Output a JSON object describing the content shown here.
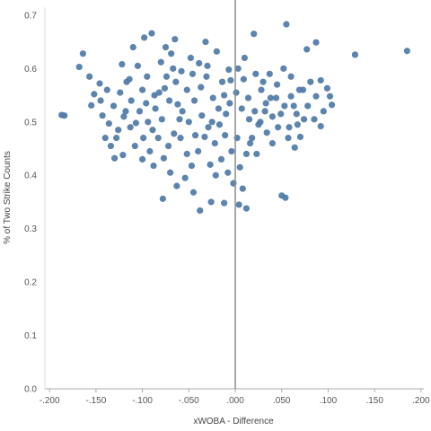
{
  "chart_data": {
    "type": "scatter",
    "title": "",
    "xlabel": "xWOBA - Difference",
    "ylabel": "% of Two Strike Counts",
    "xlim": [
      -0.205,
      0.203
    ],
    "ylim": [
      0.0,
      0.715
    ],
    "x_ticks": [
      -0.2,
      -0.15,
      -0.1,
      -0.05,
      0.0,
      0.05,
      0.1,
      0.15,
      0.2
    ],
    "x_tick_labels": [
      "-.200",
      "-.150",
      "-.100",
      "-.050",
      ".000",
      ".050",
      ".100",
      ".150",
      ".200"
    ],
    "y_ticks": [
      0.0,
      0.1,
      0.2,
      0.3,
      0.4,
      0.5,
      0.6,
      0.7
    ],
    "y_tick_labels": [
      "0.0",
      "0.1",
      "0.2",
      "0.3",
      "0.4",
      "0.5",
      "0.6",
      "0.7"
    ],
    "reference_line_x": 0.0,
    "grid": false,
    "point_color": "#4e79a7",
    "axis_color": "#aaaaaa",
    "reference_line_color": "#8c8c8c",
    "series": [
      {
        "name": "",
        "points": [
          [
            -0.187,
            0.513
          ],
          [
            -0.184,
            0.512
          ],
          [
            -0.164,
            0.628
          ],
          [
            -0.168,
            0.603
          ],
          [
            -0.157,
            0.585
          ],
          [
            -0.146,
            0.572
          ],
          [
            -0.152,
            0.552
          ],
          [
            -0.155,
            0.531
          ],
          [
            -0.143,
            0.512
          ],
          [
            -0.136,
            0.497
          ],
          [
            -0.128,
            0.47
          ],
          [
            -0.13,
            0.432
          ],
          [
            -0.121,
            0.438
          ],
          [
            -0.122,
            0.608
          ],
          [
            -0.114,
            0.58
          ],
          [
            -0.112,
            0.54
          ],
          [
            -0.118,
            0.52
          ],
          [
            -0.107,
            0.498
          ],
          [
            -0.099,
            0.47
          ],
          [
            -0.092,
            0.445
          ],
          [
            -0.088,
            0.418
          ],
          [
            -0.087,
            0.55
          ],
          [
            -0.095,
            0.585
          ],
          [
            -0.08,
            0.612
          ],
          [
            -0.069,
            0.628
          ],
          [
            -0.076,
            0.563
          ],
          [
            -0.062,
            0.533
          ],
          [
            -0.083,
            0.47
          ],
          [
            -0.077,
            0.432
          ],
          [
            -0.07,
            0.405
          ],
          [
            -0.063,
            0.38
          ],
          [
            -0.078,
            0.356
          ],
          [
            -0.045,
            0.368
          ],
          [
            -0.038,
            0.334
          ],
          [
            -0.026,
            0.35
          ],
          [
            -0.054,
            0.395
          ],
          [
            -0.047,
            0.418
          ],
          [
            -0.04,
            0.445
          ],
          [
            -0.033,
            0.472
          ],
          [
            -0.025,
            0.5
          ],
          [
            -0.018,
            0.525
          ],
          [
            -0.012,
            0.55
          ],
          [
            -0.005,
            0.578
          ],
          [
            -0.03,
            0.605
          ],
          [
            -0.02,
            0.632
          ],
          [
            -0.032,
            0.65
          ],
          [
            -0.048,
            0.62
          ],
          [
            -0.058,
            0.595
          ],
          [
            -0.052,
            0.56
          ],
          [
            -0.044,
            0.54
          ],
          [
            -0.036,
            0.512
          ],
          [
            -0.029,
            0.49
          ],
          [
            -0.022,
            0.46
          ],
          [
            -0.015,
            0.43
          ],
          [
            -0.008,
            0.405
          ],
          [
            -0.002,
            0.385
          ],
          [
            0.005,
            0.415
          ],
          [
            0.012,
            0.44
          ],
          [
            0.018,
            0.47
          ],
          [
            0.025,
            0.495
          ],
          [
            0.032,
            0.52
          ],
          [
            0.038,
            0.545
          ],
          [
            0.045,
            0.57
          ],
          [
            0.052,
            0.6
          ],
          [
            0.01,
            0.62
          ],
          [
            0.02,
            0.665
          ],
          [
            0.008,
            0.375
          ],
          [
            0.012,
            0.338
          ],
          [
            0.004,
            0.345
          ],
          [
            -0.012,
            0.348
          ],
          [
            0.05,
            0.362
          ],
          [
            0.054,
            0.358
          ],
          [
            0.055,
            0.683
          ],
          [
            0.077,
            0.636
          ],
          [
            0.087,
            0.649
          ],
          [
            0.092,
            0.578
          ],
          [
            0.099,
            0.563
          ],
          [
            0.087,
            0.548
          ],
          [
            0.078,
            0.53
          ],
          [
            0.085,
            0.505
          ],
          [
            0.092,
            0.492
          ],
          [
            0.07,
            0.472
          ],
          [
            0.064,
            0.452
          ],
          [
            0.058,
            0.49
          ],
          [
            0.066,
            0.515
          ],
          [
            0.073,
            0.56
          ],
          [
            0.06,
            0.585
          ],
          [
            0.102,
            0.548
          ],
          [
            0.104,
            0.532
          ],
          [
            0.129,
            0.626
          ],
          [
            0.185,
            0.633
          ],
          [
            0.04,
            0.46
          ],
          [
            0.034,
            0.48
          ],
          [
            0.028,
            0.56
          ],
          [
            0.022,
            0.59
          ],
          [
            0.015,
            0.505
          ],
          [
            0.002,
            0.47
          ],
          [
            -0.004,
            0.445
          ],
          [
            -0.01,
            0.515
          ],
          [
            -0.06,
            0.505
          ],
          [
            -0.066,
            0.478
          ],
          [
            -0.072,
            0.455
          ],
          [
            -0.1,
            0.56
          ],
          [
            -0.105,
            0.605
          ],
          [
            -0.11,
            0.64
          ],
          [
            -0.098,
            0.658
          ],
          [
            -0.09,
            0.666
          ],
          [
            -0.075,
            0.64
          ],
          [
            -0.065,
            0.655
          ],
          [
            -0.14,
            0.47
          ],
          [
            -0.134,
            0.455
          ],
          [
            -0.126,
            0.485
          ],
          [
            -0.12,
            0.51
          ],
          [
            -0.113,
            0.49
          ],
          [
            -0.108,
            0.455
          ],
          [
            -0.1,
            0.43
          ],
          [
            -0.094,
            0.5
          ],
          [
            -0.086,
            0.525
          ],
          [
            -0.079,
            0.505
          ],
          [
            -0.071,
            0.54
          ],
          [
            -0.064,
            0.575
          ],
          [
            -0.057,
            0.52
          ],
          [
            -0.05,
            0.5
          ],
          [
            -0.043,
            0.475
          ],
          [
            -0.037,
            0.565
          ],
          [
            -0.031,
            0.585
          ],
          [
            -0.024,
            0.545
          ],
          [
            -0.017,
            0.495
          ],
          [
            -0.011,
            0.475
          ],
          [
            -0.006,
            0.535
          ],
          [
            0.001,
            0.555
          ],
          [
            0.007,
            0.525
          ],
          [
            0.014,
            0.545
          ],
          [
            0.021,
            0.52
          ],
          [
            0.027,
            0.5
          ],
          [
            0.033,
            0.535
          ],
          [
            0.04,
            0.51
          ],
          [
            0.046,
            0.49
          ],
          [
            0.053,
            0.53
          ],
          [
            0.06,
            0.548
          ],
          [
            0.067,
            0.495
          ],
          [
            0.074,
            0.505
          ],
          [
            -0.145,
            0.54
          ],
          [
            -0.138,
            0.56
          ],
          [
            -0.131,
            0.53
          ],
          [
            -0.124,
            0.555
          ],
          [
            -0.117,
            0.575
          ],
          [
            -0.103,
            0.52
          ],
          [
            -0.096,
            0.535
          ],
          [
            -0.089,
            0.485
          ],
          [
            -0.082,
            0.555
          ],
          [
            -0.074,
            0.585
          ],
          [
            -0.067,
            0.6
          ],
          [
            -0.059,
            0.47
          ],
          [
            -0.052,
            0.44
          ],
          [
            -0.046,
            0.59
          ],
          [
            -0.039,
            0.61
          ],
          [
            -0.027,
            0.42
          ],
          [
            -0.021,
            0.4
          ],
          [
            -0.014,
            0.575
          ],
          [
            -0.007,
            0.598
          ],
          [
            0.003,
            0.6
          ],
          [
            0.009,
            0.58
          ],
          [
            0.016,
            0.46
          ],
          [
            0.023,
            0.44
          ],
          [
            0.03,
            0.575
          ],
          [
            0.037,
            0.59
          ],
          [
            0.044,
            0.545
          ],
          [
            0.049,
            0.515
          ],
          [
            0.057,
            0.47
          ],
          [
            0.063,
            0.53
          ],
          [
            0.069,
            0.56
          ],
          [
            0.081,
            0.575
          ],
          [
            0.095,
            0.52
          ]
        ]
      }
    ]
  }
}
